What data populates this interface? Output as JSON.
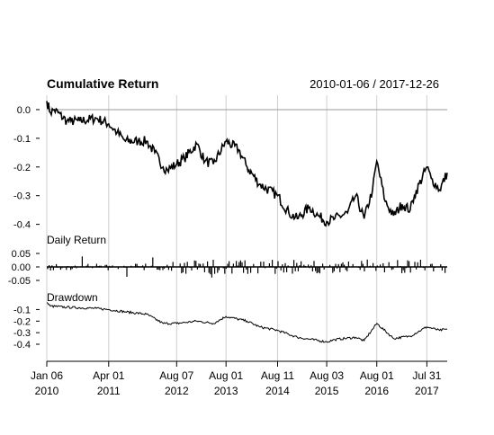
{
  "chart_data": [
    {
      "type": "line",
      "title": "Cumulative Return",
      "date_range": "2010-01-06 / 2017-12-26",
      "ylim": [
        -0.42,
        0.05
      ],
      "yticks": [
        0.0,
        -0.1,
        -0.2,
        -0.3,
        -0.4
      ],
      "ytick_labels": [
        "0.0",
        "-0.1",
        "-0.2",
        "-0.3",
        "-0.4"
      ],
      "reference_line": 0.0,
      "grid": true,
      "x": [
        "2010-01-06",
        "2010-02-01",
        "2010-03-01",
        "2010-06-01",
        "2010-07-01",
        "2010-09-01",
        "2011-01-01",
        "2011-04-01",
        "2011-06-01",
        "2011-08-01",
        "2011-11-01",
        "2012-01-01",
        "2012-03-01",
        "2012-05-01",
        "2012-06-01",
        "2012-08-07",
        "2012-10-01",
        "2013-01-01",
        "2013-03-01",
        "2013-05-01",
        "2013-08-01",
        "2013-11-01",
        "2014-01-01",
        "2014-04-01",
        "2014-08-11",
        "2014-11-01",
        "2015-01-01",
        "2015-04-01",
        "2015-06-01",
        "2015-08-03",
        "2015-10-01",
        "2016-01-01",
        "2016-03-01",
        "2016-05-01",
        "2016-07-01",
        "2016-08-01",
        "2016-10-01",
        "2016-12-01",
        "2017-02-01",
        "2017-04-01",
        "2017-05-01",
        "2017-07-31",
        "2017-09-01",
        "2017-11-01",
        "2017-12-26"
      ],
      "values": [
        0.03,
        -0.01,
        0.0,
        -0.04,
        -0.04,
        -0.04,
        -0.03,
        -0.05,
        -0.08,
        -0.11,
        -0.11,
        -0.11,
        -0.15,
        -0.2,
        -0.21,
        -0.19,
        -0.17,
        -0.12,
        -0.18,
        -0.19,
        -0.11,
        -0.14,
        -0.2,
        -0.26,
        -0.3,
        -0.36,
        -0.38,
        -0.34,
        -0.37,
        -0.39,
        -0.38,
        -0.36,
        -0.3,
        -0.38,
        -0.28,
        -0.18,
        -0.32,
        -0.37,
        -0.33,
        -0.35,
        -0.3,
        -0.2,
        -0.24,
        -0.28,
        -0.22
      ]
    },
    {
      "type": "bar",
      "title": "Daily Return",
      "ylim": [
        -0.07,
        0.07
      ],
      "yticks": [
        0.05,
        0.0,
        -0.05
      ],
      "ytick_labels": [
        "0.05",
        "0.00",
        "-0.05"
      ]
    },
    {
      "type": "line",
      "title": "Drawdown",
      "ylim": [
        -0.47,
        -0.05
      ],
      "yticks": [
        -0.1,
        -0.2,
        -0.3,
        -0.4
      ],
      "ytick_labels": [
        "-0.1",
        "-0.2",
        "-0.3",
        "-0.4"
      ],
      "x": [
        "2010-01-06",
        "2010-02-01",
        "2010-06-01",
        "2011-01-01",
        "2011-04-01",
        "2011-08-01",
        "2012-01-01",
        "2012-05-01",
        "2012-08-07",
        "2013-01-01",
        "2013-05-01",
        "2013-08-01",
        "2014-01-01",
        "2014-04-01",
        "2014-08-11",
        "2015-01-01",
        "2015-08-03",
        "2015-10-01",
        "2016-03-01",
        "2016-05-01",
        "2016-08-01",
        "2016-12-01",
        "2017-04-01",
        "2017-07-31",
        "2017-11-01",
        "2017-12-26"
      ],
      "values": [
        -0.04,
        -0.07,
        -0.08,
        -0.09,
        -0.1,
        -0.12,
        -0.14,
        -0.22,
        -0.22,
        -0.2,
        -0.22,
        -0.16,
        -0.2,
        -0.25,
        -0.28,
        -0.34,
        -0.38,
        -0.36,
        -0.34,
        -0.37,
        -0.22,
        -0.35,
        -0.33,
        -0.25,
        -0.28,
        -0.27
      ]
    }
  ],
  "x_axis": {
    "ticks": [
      {
        "date": "2010-01-06",
        "label": "Jan 06",
        "year": "2010"
      },
      {
        "date": "2011-04-01",
        "label": "Apr 01",
        "year": "2011"
      },
      {
        "date": "2012-08-07",
        "label": "Aug 07",
        "year": "2012"
      },
      {
        "date": "2013-08-01",
        "label": "Aug 01",
        "year": "2013"
      },
      {
        "date": "2014-08-11",
        "label": "Aug 11",
        "year": "2014"
      },
      {
        "date": "2015-08-03",
        "label": "Aug 03",
        "year": "2015"
      },
      {
        "date": "2016-08-01",
        "label": "Aug 01",
        "year": "2016"
      },
      {
        "date": "2017-07-31",
        "label": "Jul 31",
        "year": "2017"
      }
    ]
  },
  "colors": {
    "line": "#000000",
    "grid": "#cfcfcf",
    "reference": "#9a9a9a"
  }
}
